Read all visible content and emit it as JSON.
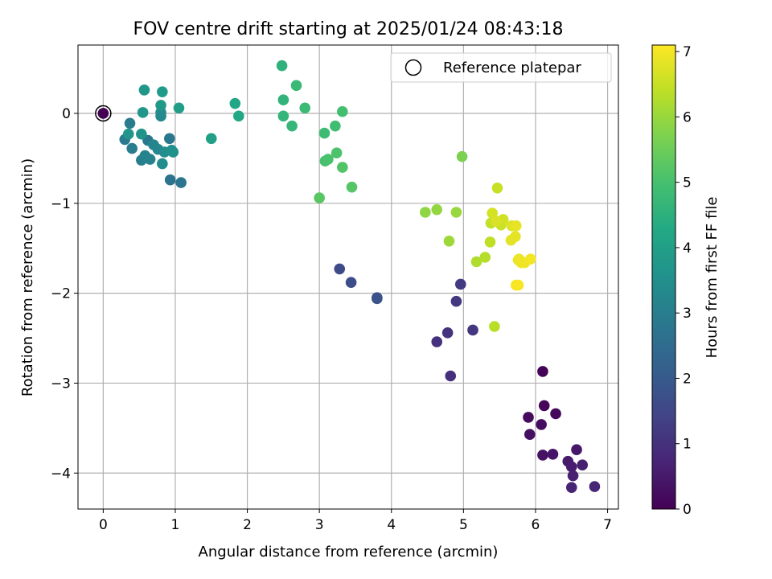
{
  "chart_data": {
    "type": "scatter",
    "title": "FOV centre drift starting at 2025/01/24 08:43:18",
    "xlabel": "Angular distance from reference (arcmin)",
    "ylabel": "Rotation from reference (arcmin)",
    "xlim": [
      -0.35,
      7.15
    ],
    "ylim": [
      -4.4,
      0.76
    ],
    "grid": true,
    "x_ticks": [
      0,
      1,
      2,
      3,
      4,
      5,
      6,
      7
    ],
    "x_tick_labels": [
      "0",
      "1",
      "2",
      "3",
      "4",
      "5",
      "6",
      "7"
    ],
    "y_ticks": [
      0,
      -1,
      -2,
      -3,
      -4
    ],
    "y_tick_labels": [
      "0",
      "−1",
      "−2",
      "−3",
      "−4"
    ],
    "colormap": "viridis",
    "colorbar": {
      "label": "Hours from first FF file",
      "range": [
        0,
        7.1
      ],
      "ticks": [
        0,
        1,
        2,
        3,
        4,
        5,
        6,
        7
      ],
      "tick_labels": [
        "0",
        "1",
        "2",
        "3",
        "4",
        "5",
        "6",
        "7"
      ]
    },
    "legend": {
      "placement": "top-right",
      "entries": [
        "Reference platepar"
      ]
    },
    "reference_point": {
      "x": 0,
      "y": 0,
      "color_value": 0
    },
    "points": [
      {
        "x": 6.1,
        "y": -2.87,
        "c": 0.05
      },
      {
        "x": 6.12,
        "y": -3.25,
        "c": 0.1
      },
      {
        "x": 6.28,
        "y": -3.34,
        "c": 0.15
      },
      {
        "x": 5.9,
        "y": -3.38,
        "c": 0.2
      },
      {
        "x": 6.08,
        "y": -3.46,
        "c": 0.25
      },
      {
        "x": 5.92,
        "y": -3.57,
        "c": 0.3
      },
      {
        "x": 6.1,
        "y": -3.8,
        "c": 0.35
      },
      {
        "x": 6.24,
        "y": -3.79,
        "c": 0.4
      },
      {
        "x": 6.57,
        "y": -3.74,
        "c": 0.45
      },
      {
        "x": 6.45,
        "y": -3.87,
        "c": 0.5
      },
      {
        "x": 6.5,
        "y": -3.93,
        "c": 0.55
      },
      {
        "x": 6.65,
        "y": -3.91,
        "c": 0.6
      },
      {
        "x": 6.52,
        "y": -4.03,
        "c": 0.65
      },
      {
        "x": 6.5,
        "y": -4.16,
        "c": 0.7
      },
      {
        "x": 6.82,
        "y": -4.15,
        "c": 0.75
      },
      {
        "x": 4.82,
        "y": -2.92,
        "c": 0.95
      },
      {
        "x": 4.63,
        "y": -2.54,
        "c": 1.0
      },
      {
        "x": 4.78,
        "y": -2.44,
        "c": 1.05
      },
      {
        "x": 5.13,
        "y": -2.41,
        "c": 1.1
      },
      {
        "x": 4.9,
        "y": -2.09,
        "c": 1.15
      },
      {
        "x": 4.96,
        "y": -1.9,
        "c": 1.2
      },
      {
        "x": 3.28,
        "y": -1.73,
        "c": 1.6
      },
      {
        "x": 3.44,
        "y": -1.88,
        "c": 1.65
      },
      {
        "x": 3.8,
        "y": -2.05,
        "c": 1.75
      },
      {
        "x": 3.8,
        "y": -2.06,
        "c": 1.8
      },
      {
        "x": 0.93,
        "y": -0.74,
        "c": 2.7
      },
      {
        "x": 1.08,
        "y": -0.77,
        "c": 2.75
      },
      {
        "x": 0.92,
        "y": -0.28,
        "c": 2.8
      },
      {
        "x": 0.62,
        "y": -0.3,
        "c": 2.85
      },
      {
        "x": 0.3,
        "y": -0.29,
        "c": 2.9
      },
      {
        "x": 0.37,
        "y": -0.11,
        "c": 2.95
      },
      {
        "x": 0.4,
        "y": -0.39,
        "c": 3.0
      },
      {
        "x": 0.53,
        "y": -0.52,
        "c": 3.05
      },
      {
        "x": 0.65,
        "y": -0.51,
        "c": 3.1
      },
      {
        "x": 0.58,
        "y": -0.47,
        "c": 3.15
      },
      {
        "x": 0.7,
        "y": -0.35,
        "c": 3.2
      },
      {
        "x": 0.76,
        "y": -0.4,
        "c": 3.25
      },
      {
        "x": 0.8,
        "y": -0.03,
        "c": 3.3
      },
      {
        "x": 0.8,
        "y": 0.01,
        "c": 3.35
      },
      {
        "x": 0.82,
        "y": -0.56,
        "c": 3.4
      },
      {
        "x": 0.85,
        "y": -0.43,
        "c": 3.45
      },
      {
        "x": 0.97,
        "y": -0.43,
        "c": 3.5
      },
      {
        "x": 0.95,
        "y": -0.41,
        "c": 3.55
      },
      {
        "x": 0.53,
        "y": -0.23,
        "c": 3.6
      },
      {
        "x": 0.35,
        "y": -0.23,
        "c": 3.65
      },
      {
        "x": 0.55,
        "y": 0.01,
        "c": 3.7
      },
      {
        "x": 0.57,
        "y": 0.26,
        "c": 3.75
      },
      {
        "x": 0.8,
        "y": 0.09,
        "c": 3.8
      },
      {
        "x": 0.82,
        "y": 0.24,
        "c": 3.85
      },
      {
        "x": 1.05,
        "y": 0.06,
        "c": 3.95
      },
      {
        "x": 1.5,
        "y": -0.28,
        "c": 4.0
      },
      {
        "x": 1.83,
        "y": 0.11,
        "c": 4.2
      },
      {
        "x": 1.88,
        "y": -0.03,
        "c": 4.25
      },
      {
        "x": 2.48,
        "y": 0.53,
        "c": 4.55
      },
      {
        "x": 2.5,
        "y": 0.15,
        "c": 4.6
      },
      {
        "x": 2.5,
        "y": -0.03,
        "c": 4.65
      },
      {
        "x": 2.62,
        "y": -0.14,
        "c": 4.7
      },
      {
        "x": 2.68,
        "y": 0.31,
        "c": 4.75
      },
      {
        "x": 2.8,
        "y": 0.06,
        "c": 4.8
      },
      {
        "x": 3.07,
        "y": -0.22,
        "c": 4.85
      },
      {
        "x": 3.22,
        "y": -0.14,
        "c": 4.9
      },
      {
        "x": 3.32,
        "y": 0.02,
        "c": 4.95
      },
      {
        "x": 3.08,
        "y": -0.53,
        "c": 5.0
      },
      {
        "x": 3.12,
        "y": -0.51,
        "c": 5.05
      },
      {
        "x": 3.24,
        "y": -0.44,
        "c": 5.1
      },
      {
        "x": 3.32,
        "y": -0.6,
        "c": 5.15
      },
      {
        "x": 3.45,
        "y": -0.82,
        "c": 5.2
      },
      {
        "x": 3.0,
        "y": -0.94,
        "c": 5.25
      },
      {
        "x": 4.98,
        "y": -0.48,
        "c": 5.7
      },
      {
        "x": 4.47,
        "y": -1.1,
        "c": 5.9
      },
      {
        "x": 4.63,
        "y": -1.07,
        "c": 5.95
      },
      {
        "x": 4.9,
        "y": -1.1,
        "c": 6.0
      },
      {
        "x": 4.8,
        "y": -1.42,
        "c": 6.05
      },
      {
        "x": 5.18,
        "y": -1.65,
        "c": 6.25
      },
      {
        "x": 5.3,
        "y": -1.6,
        "c": 6.3
      },
      {
        "x": 5.43,
        "y": -2.37,
        "c": 6.35
      },
      {
        "x": 5.37,
        "y": -1.43,
        "c": 6.4
      },
      {
        "x": 5.38,
        "y": -1.22,
        "c": 6.45
      },
      {
        "x": 5.47,
        "y": -0.83,
        "c": 6.5
      },
      {
        "x": 5.52,
        "y": -1.24,
        "c": 6.55
      },
      {
        "x": 5.55,
        "y": -1.18,
        "c": 6.6
      },
      {
        "x": 5.4,
        "y": -1.11,
        "c": 6.65
      },
      {
        "x": 5.45,
        "y": -1.2,
        "c": 6.7
      },
      {
        "x": 5.67,
        "y": -1.25,
        "c": 6.75
      },
      {
        "x": 5.66,
        "y": -1.41,
        "c": 6.8
      },
      {
        "x": 5.72,
        "y": -1.37,
        "c": 6.82
      },
      {
        "x": 5.73,
        "y": -1.25,
        "c": 6.85
      },
      {
        "x": 5.77,
        "y": -1.62,
        "c": 6.88
      },
      {
        "x": 5.76,
        "y": -1.63,
        "c": 6.9
      },
      {
        "x": 5.8,
        "y": -1.66,
        "c": 6.92
      },
      {
        "x": 5.85,
        "y": -1.66,
        "c": 6.95
      },
      {
        "x": 5.93,
        "y": -1.62,
        "c": 6.98
      },
      {
        "x": 5.73,
        "y": -1.91,
        "c": 7.0
      },
      {
        "x": 5.76,
        "y": -1.91,
        "c": 7.05
      }
    ]
  }
}
